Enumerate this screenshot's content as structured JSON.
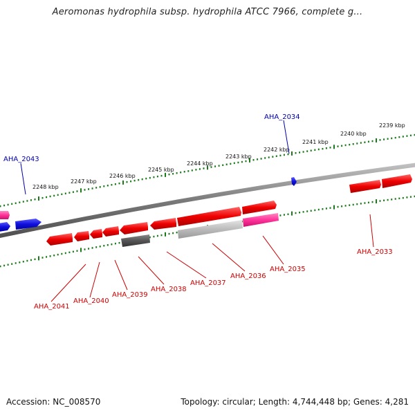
{
  "title": "Aeromonas hydrophila subsp. hydrophila ATCC 7966, complete g...",
  "footer": {
    "accession": "Accession: NC_008570",
    "topology": "Topology: circular; Length: 4,744,448 bp; Genes: 4,281"
  },
  "ruler_labels": [
    "2248 kbp",
    "2247 kbp",
    "2246 kbp",
    "2245 kbp",
    "2244 kbp",
    "2243 kbp",
    "2242 kbp",
    "2241 kbp",
    "2240 kbp",
    "2239 kbp"
  ],
  "top_genes": [
    "AHA_2043",
    "AHA_2034"
  ],
  "bottom_genes": [
    "AHA_2041",
    "AHA_2040",
    "AHA_2039",
    "AHA_2038",
    "AHA_2037",
    "AHA_2036",
    "AHA_2035",
    "AHA_2033"
  ],
  "colors": {
    "forward_gene": "#1010dd",
    "reverse_gene": "#ee0000",
    "pink_gene": "#ff3399",
    "dark_gray_gene": "#555555",
    "light_gray_gene": "#bbbbbb",
    "backbone": "#808080",
    "ruler_ticks": "#1a7a1a",
    "forward_label": "#0000aa",
    "reverse_label": "#cc0000"
  }
}
